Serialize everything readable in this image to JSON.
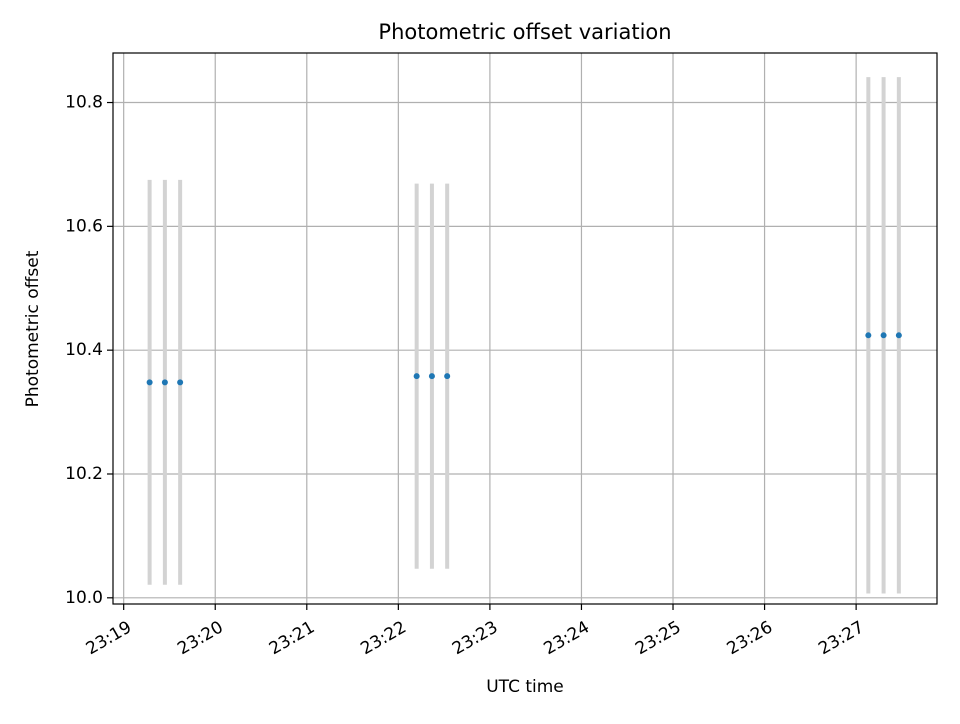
{
  "chart_data": {
    "type": "scatter",
    "title": "Photometric offset variation",
    "xlabel": "UTC time",
    "ylabel": "Photometric offset",
    "x_ticks": [
      "23:19",
      "23:20",
      "23:21",
      "23:22",
      "23:23",
      "23:24",
      "23:25",
      "23:26",
      "23:27"
    ],
    "y_ticks": [
      "10.0",
      "10.2",
      "10.4",
      "10.6",
      "10.8"
    ],
    "xlim": [
      "23:18:53",
      "23:27:53"
    ],
    "ylim": [
      9.99,
      10.88
    ],
    "grid": true,
    "legend": "none",
    "colors": {
      "points": "#1f77b4",
      "errorbars": "#d3d3d3",
      "grid": "#b0b0b0",
      "axes": "#000000"
    },
    "points": [
      {
        "x": "23:19:17",
        "y": 10.348,
        "err": 0.327
      },
      {
        "x": "23:19:27",
        "y": 10.348,
        "err": 0.327
      },
      {
        "x": "23:19:37",
        "y": 10.348,
        "err": 0.327
      },
      {
        "x": "23:22:12",
        "y": 10.358,
        "err": 0.311
      },
      {
        "x": "23:22:22",
        "y": 10.358,
        "err": 0.311
      },
      {
        "x": "23:22:32",
        "y": 10.358,
        "err": 0.311
      },
      {
        "x": "23:27:08",
        "y": 10.424,
        "err": 0.417
      },
      {
        "x": "23:27:18",
        "y": 10.424,
        "err": 0.417
      },
      {
        "x": "23:27:28",
        "y": 10.424,
        "err": 0.417
      }
    ]
  }
}
